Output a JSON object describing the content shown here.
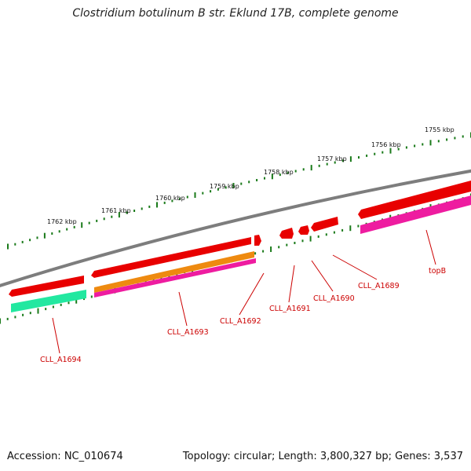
{
  "title": "Clostridium botulinum B str. Eklund 17B, complete genome",
  "footer": {
    "accession": "Accession: NC_010674",
    "summary": "Topology: circular; Length: 3,800,327 bp; Genes: 3,537"
  },
  "colors": {
    "backbone": "#7d7d7d",
    "kbp_tick": "#1a7a1a",
    "forward_cds": "#ee0000",
    "gene_label": "#cc0000",
    "teal_feature": "#22e8a0",
    "orange_feature": "#ee8a10",
    "magenta_feature": "#ee1ca0"
  },
  "scale_labels": [
    "1755 kbp",
    "1756 kbp",
    "1757 kbp",
    "1758 kbp",
    "1759 kbp",
    "1760 kbp",
    "1761 kbp",
    "1762 kbp"
  ],
  "gene_labels": [
    "topB",
    "CLL_A1689",
    "CLL_A1690",
    "CLL_A1691",
    "CLL_A1692",
    "CLL_A1693",
    "CLL_A1694"
  ]
}
